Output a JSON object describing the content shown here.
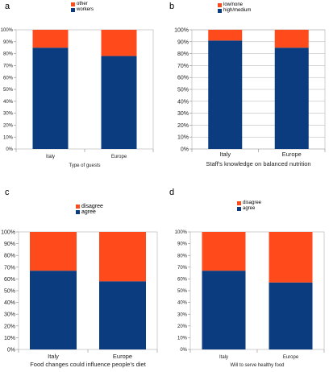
{
  "charts": [
    {
      "panel": "a",
      "chart_data": {
        "type": "bar",
        "stacked": true,
        "percent": true,
        "categories": [
          "Italy",
          "Europe"
        ],
        "series": [
          {
            "name": "workers",
            "values": [
              85,
              78
            ],
            "color": "#0b3c7f"
          },
          {
            "name": "other",
            "values": [
              15,
              22
            ],
            "color": "#ff4a1c"
          }
        ],
        "legend_order": [
          "other",
          "workers"
        ],
        "xlabel": "Type of guests",
        "ylabel": "",
        "ylim": [
          0,
          100
        ],
        "yticks": [
          "0%",
          "10%",
          "20%",
          "30%",
          "40%",
          "50%",
          "60%",
          "70%",
          "80%",
          "90%",
          "100%"
        ],
        "grid": false,
        "legend": "top-center"
      }
    },
    {
      "panel": "b",
      "chart_data": {
        "type": "bar",
        "stacked": true,
        "percent": true,
        "categories": [
          "Italy",
          "Europe"
        ],
        "series": [
          {
            "name": "high/medium",
            "values": [
              91,
              85
            ],
            "color": "#0b3c7f"
          },
          {
            "name": "low/none",
            "values": [
              9,
              15
            ],
            "color": "#ff4a1c"
          }
        ],
        "legend_order": [
          "low/none",
          "high/medium"
        ],
        "xlabel": "Staff's knowledge on balanced nutrition",
        "ylabel": "",
        "ylim": [
          0,
          100
        ],
        "yticks": [
          "0%",
          "10%",
          "20%",
          "30%",
          "40%",
          "50%",
          "60%",
          "70%",
          "80%",
          "90%",
          "100%"
        ],
        "grid": true,
        "legend": "top-center"
      }
    },
    {
      "panel": "c",
      "chart_data": {
        "type": "bar",
        "stacked": true,
        "percent": true,
        "categories": [
          "Italy",
          "Europe"
        ],
        "series": [
          {
            "name": "agree",
            "values": [
              67,
              58
            ],
            "color": "#0b3c7f"
          },
          {
            "name": "disagree",
            "values": [
              33,
              42
            ],
            "color": "#ff4a1c"
          }
        ],
        "legend_order": [
          "disagree",
          "agree"
        ],
        "xlabel": "Food changes could influence people's diet",
        "ylabel": "",
        "ylim": [
          0,
          100
        ],
        "yticks": [
          "0%",
          "10%",
          "20%",
          "30%",
          "40%",
          "50%",
          "60%",
          "70%",
          "80%",
          "90%",
          "100%"
        ],
        "grid": false,
        "legend": "top-center"
      }
    },
    {
      "panel": "d",
      "chart_data": {
        "type": "bar",
        "stacked": true,
        "percent": true,
        "categories": [
          "Italy",
          "Europe"
        ],
        "series": [
          {
            "name": "agree",
            "values": [
              67,
              57
            ],
            "color": "#0b3c7f"
          },
          {
            "name": "disagree",
            "values": [
              33,
              43
            ],
            "color": "#ff4a1c"
          }
        ],
        "legend_order": [
          "disagree",
          "agree"
        ],
        "xlabel": "Will to serve healthy food",
        "ylabel": "",
        "ylim": [
          0,
          100
        ],
        "yticks": [
          "0%",
          "10%",
          "20%",
          "30%",
          "40%",
          "50%",
          "60%",
          "70%",
          "80%",
          "90%",
          "100%"
        ],
        "grid": false,
        "legend": "top-center"
      }
    }
  ]
}
